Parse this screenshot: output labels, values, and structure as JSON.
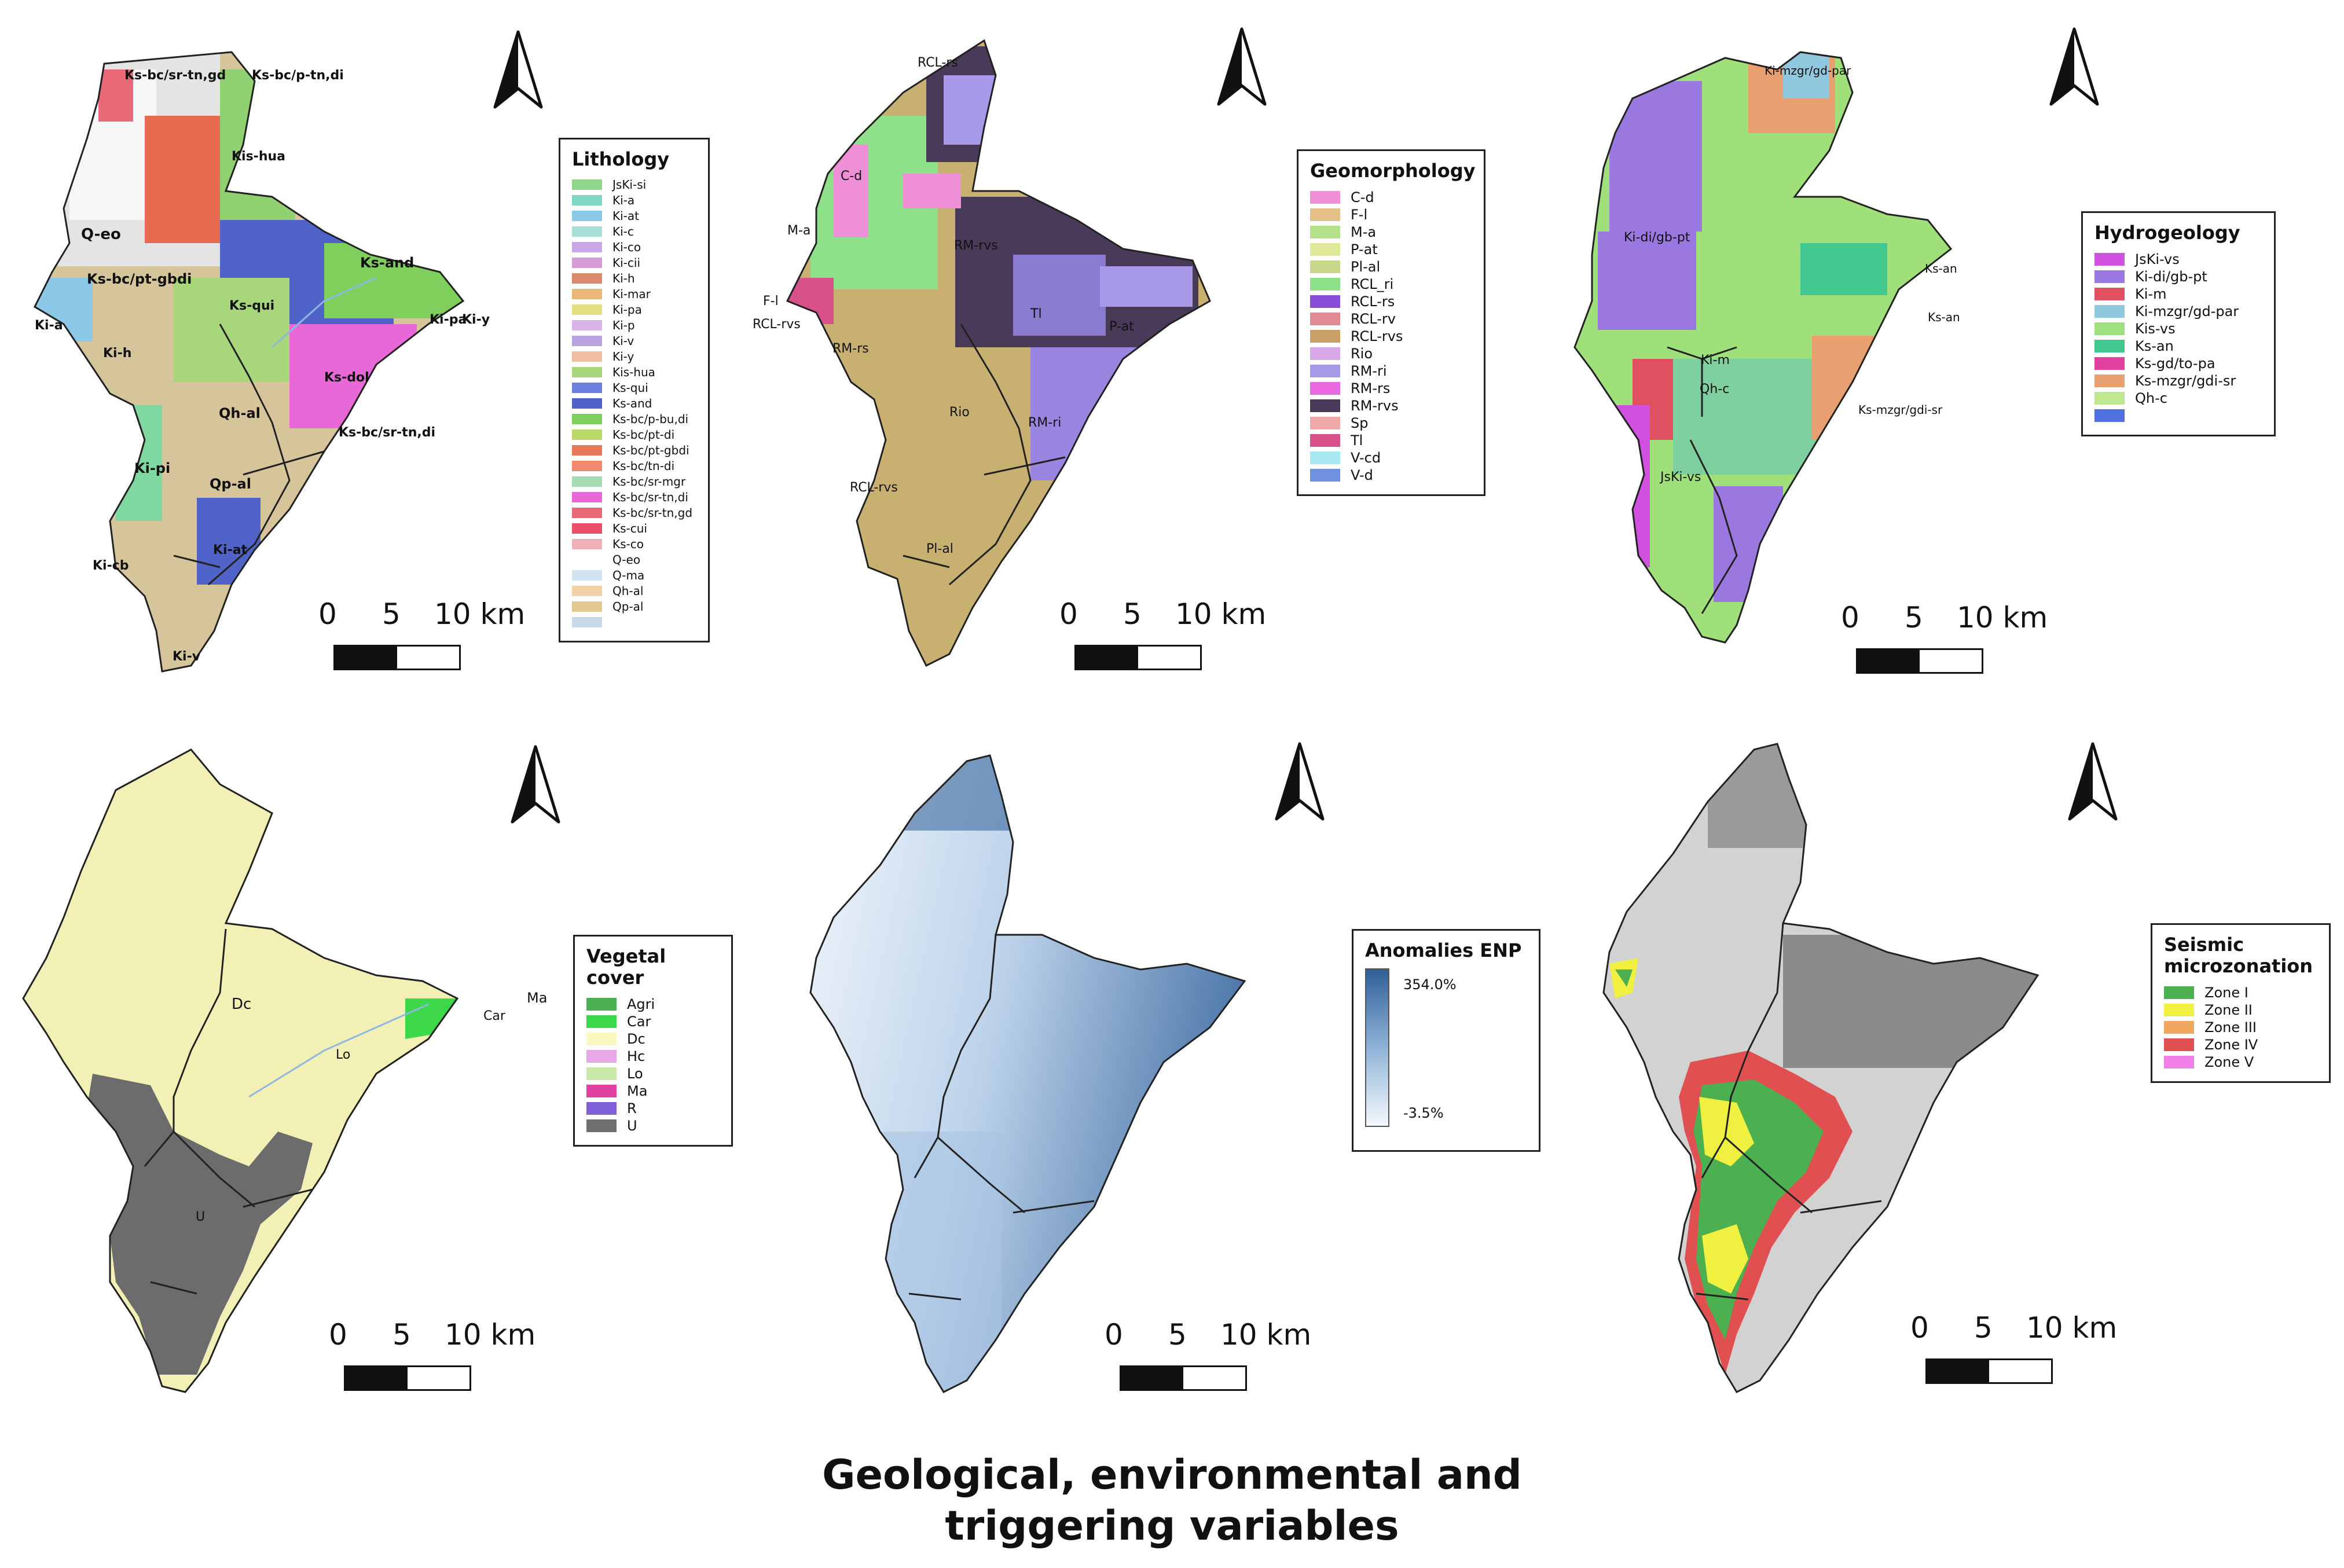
{
  "figure_title_line1": "Geological, environmental and",
  "figure_title_line2": "triggering variables",
  "scale_bar": {
    "labels": [
      "0",
      "5",
      "10 km"
    ]
  },
  "icons": {
    "north_arrow": "north-arrow-icon"
  },
  "panels": {
    "lithology": {
      "legend_title": "Lithology",
      "legend": [
        {
          "label": "JsKi-si",
          "color": "#8fd68b"
        },
        {
          "label": "Ki-a",
          "color": "#7fd8c4"
        },
        {
          "label": "Ki-at",
          "color": "#8cc8e8"
        },
        {
          "label": "Ki-c",
          "color": "#a8e0d8"
        },
        {
          "label": "Ki-co",
          "color": "#c9a6e8"
        },
        {
          "label": "Ki-cii",
          "color": "#d49bd6"
        },
        {
          "label": "Ki-h",
          "color": "#d98a6c"
        },
        {
          "label": "Ki-mar",
          "color": "#e8b878"
        },
        {
          "label": "Ki-pa",
          "color": "#e6de82"
        },
        {
          "label": "Ki-p",
          "color": "#d9b4e8"
        },
        {
          "label": "Ki-v",
          "color": "#b7a2e2"
        },
        {
          "label": "Ki-y",
          "color": "#f0bea2"
        },
        {
          "label": "Kis-hua",
          "color": "#a8d67a"
        },
        {
          "label": "Ks-qui",
          "color": "#6c7fdc"
        },
        {
          "label": "Ks-and",
          "color": "#4f63c8"
        },
        {
          "label": "Ks-bc/p-bu,di",
          "color": "#7fcf5c"
        },
        {
          "label": "Ks-bc/pt-di",
          "color": "#b8d86a"
        },
        {
          "label": "Ks-bc/pt-gbdi",
          "color": "#e8785a"
        },
        {
          "label": "Ks-bc/tn-di",
          "color": "#f08a6c"
        },
        {
          "label": "Ks-bc/sr-mgr",
          "color": "#a6dcb4"
        },
        {
          "label": "Ks-bc/sr-tn,di",
          "color": "#e868d8"
        },
        {
          "label": "Ks-bc/sr-tn,gd",
          "color": "#e86878"
        },
        {
          "label": "Ks-cui",
          "color": "#e8506a"
        },
        {
          "label": "Ks-co",
          "color": "#f0b0b8"
        },
        {
          "label": "Q-eo",
          "color": "#ffffff"
        },
        {
          "label": "Q-ma",
          "color": "#cfe4f0"
        },
        {
          "label": "Qh-al",
          "color": "#f0d2a4"
        },
        {
          "label": "Qp-al",
          "color": "#e2c890"
        },
        {
          "label": "",
          "color": "#c8d8e8"
        }
      ],
      "map_labels": [
        "Ks-bc/sr-tn,gd",
        "Ks-bc/p-tn,di",
        "Kis-hua",
        "Q-eo",
        "Ks-bc/pt-gbdi",
        "Ks-and",
        "Ks-qui",
        "Ki-pa",
        "Ki-y",
        "Ki-a",
        "Ki-h",
        "Ks-dol",
        "Qh-al",
        "Ks-bc/sr-tn,di",
        "Ki-pi",
        "Qp-al",
        "Ki-at",
        "Ki-cb",
        "Ki-v"
      ]
    },
    "geomorphology": {
      "legend_title": "Geomorphology",
      "legend": [
        {
          "label": "C-d",
          "color": "#ee8fd8"
        },
        {
          "label": "F-l",
          "color": "#e6c08a"
        },
        {
          "label": "M-a",
          "color": "#b4e08a"
        },
        {
          "label": "P-at",
          "color": "#e0e89a"
        },
        {
          "label": "Pl-al",
          "color": "#c8d88a"
        },
        {
          "label": "RCL_ri",
          "color": "#8fe08a"
        },
        {
          "label": "RCL-rs",
          "color": "#8a4fd8"
        },
        {
          "label": "RCL-rv",
          "color": "#e08a94"
        },
        {
          "label": "RCL-rvs",
          "color": "#c8a068"
        },
        {
          "label": "Rio",
          "color": "#d8a8e8"
        },
        {
          "label": "RM-ri",
          "color": "#a89ae8"
        },
        {
          "label": "RM-rs",
          "color": "#e868e0"
        },
        {
          "label": "RM-rvs",
          "color": "#4a3a5a"
        },
        {
          "label": "Sp",
          "color": "#f0a8a8"
        },
        {
          "label": "Tl",
          "color": "#d8508a"
        },
        {
          "label": "V-cd",
          "color": "#a8e8f0"
        },
        {
          "label": "V-d",
          "color": "#7090e0"
        }
      ],
      "map_labels": [
        "RCL-rs",
        "C-d",
        "M-a",
        "RM-rvs",
        "F-l",
        "RCL-rvs",
        "RM-rs",
        "Tl",
        "P-at",
        "Rio",
        "RM-ri",
        "RCL-rvs",
        "Pl-al"
      ]
    },
    "hydrogeology": {
      "legend_title": "Hydrogeology",
      "legend": [
        {
          "label": "JsKi-vs",
          "color": "#d050e0"
        },
        {
          "label": "Ki-di/gb-pt",
          "color": "#9a78e0"
        },
        {
          "label": "Ki-m",
          "color": "#e05060"
        },
        {
          "label": "Ki-mzgr/gd-par",
          "color": "#90c8e0"
        },
        {
          "label": "Kis-vs",
          "color": "#a0e080"
        },
        {
          "label": "Ks-an",
          "color": "#40c890"
        },
        {
          "label": "Ks-gd/to-pa",
          "color": "#e040a0"
        },
        {
          "label": "Ks-mzgr/gdi-sr",
          "color": "#e8a070"
        },
        {
          "label": "Qh-c",
          "color": "#c0e890"
        },
        {
          "label": "",
          "color": "#5070e0"
        }
      ],
      "map_labels": [
        "Ki-mzgr/gd-par",
        "Ki-di/gb-pt",
        "Ks-an",
        "Ks-an",
        "Ki-m",
        "Qh-c",
        "Ks-mzgr/gdi-sr",
        "JsKi-vs"
      ]
    },
    "vegetal_cover": {
      "legend_title": "Vegetal cover",
      "legend": [
        {
          "label": "Agri",
          "color": "#4caf50"
        },
        {
          "label": "Car",
          "color": "#3cd84a"
        },
        {
          "label": "Dc",
          "color": "#f8f8c0"
        },
        {
          "label": "Hc",
          "color": "#e8a8e8"
        },
        {
          "label": "Lo",
          "color": "#c8e8a8"
        },
        {
          "label": "Ma",
          "color": "#e040a0"
        },
        {
          "label": "R",
          "color": "#8060d8"
        },
        {
          "label": "U",
          "color": "#707070"
        }
      ],
      "map_labels": [
        "Dc",
        "Ma",
        "Car",
        "Lo",
        "U"
      ]
    },
    "anomalies": {
      "legend_title": "Anomalies ENP",
      "max_label": "354.0%",
      "min_label": "-3.5%",
      "colors": {
        "high": "#2f5f98",
        "low": "#f4f8fc"
      }
    },
    "seismic": {
      "legend_title": "Seismic microzonation",
      "legend": [
        {
          "label": "Zone I",
          "color": "#4caf50"
        },
        {
          "label": "Zone II",
          "color": "#f0f040"
        },
        {
          "label": "Zone III",
          "color": "#f0a860"
        },
        {
          "label": "Zone IV",
          "color": "#e05050"
        },
        {
          "label": "Zone V",
          "color": "#f080e8"
        }
      ]
    }
  }
}
